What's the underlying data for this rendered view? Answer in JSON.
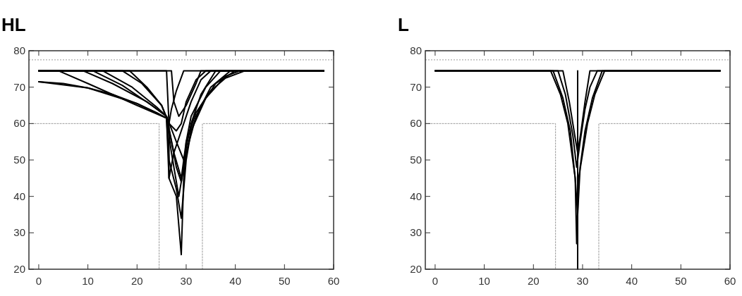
{
  "chart_data": [
    {
      "type": "line",
      "title": "HL",
      "xlim": [
        -2,
        60
      ],
      "xticks": [
        0,
        10,
        20,
        30,
        40,
        50,
        60
      ],
      "ylim": [
        20,
        80
      ],
      "yticks": [
        20,
        30,
        40,
        50,
        60,
        70,
        80
      ],
      "grid": false,
      "ref_lines": [
        {
          "axis": "y",
          "value": 77.5,
          "color": "#999999",
          "line_style": "dotted"
        }
      ],
      "series": [
        {
          "color": "#000000",
          "x": [
            0,
            5,
            10,
            15,
            20,
            24,
            26,
            26.5,
            28,
            29,
            29.5,
            30,
            32,
            35,
            38,
            42,
            58
          ],
          "values": [
            71.5,
            71,
            69.8,
            68,
            65.5,
            63,
            61.5,
            45,
            40,
            24,
            45,
            55,
            63,
            69,
            72.5,
            74.5,
            74.5
          ]
        },
        {
          "color": "#000000",
          "x": [
            0,
            10,
            20,
            26,
            26.5,
            28,
            29,
            30,
            31,
            33,
            36,
            40,
            58
          ],
          "values": [
            71.5,
            69.8,
            65.5,
            61.5,
            50,
            42,
            34,
            50,
            58,
            65,
            71,
            74.5,
            74.5
          ]
        },
        {
          "color": "#000000",
          "x": [
            0,
            4,
            10,
            20,
            26,
            27,
            28.5,
            29.5,
            31,
            34,
            38,
            41,
            58
          ],
          "values": [
            74.5,
            74.5,
            71,
            65,
            61.5,
            52,
            40,
            48,
            58,
            67,
            73,
            74.5,
            74.5
          ]
        },
        {
          "color": "#000000",
          "x": [
            0,
            9,
            15,
            22,
            26,
            27,
            28,
            29,
            30,
            32,
            35,
            39,
            58
          ],
          "values": [
            74.5,
            74.5,
            71,
            66,
            62,
            55,
            48,
            44,
            52,
            62,
            70,
            74.5,
            74.5
          ]
        },
        {
          "color": "#000000",
          "x": [
            0,
            11,
            17,
            23,
            26,
            27.5,
            29,
            30,
            31,
            34,
            37,
            58
          ],
          "values": [
            74.5,
            74.5,
            70.5,
            65,
            62,
            52,
            45,
            55,
            62,
            70,
            74.5,
            74.5
          ]
        },
        {
          "color": "#000000",
          "x": [
            0,
            13,
            19,
            24,
            26,
            28,
            29.5,
            31,
            33,
            36,
            58
          ],
          "values": [
            74.5,
            74.5,
            70,
            64.5,
            62,
            55,
            50,
            60,
            68,
            74.5,
            74.5
          ]
        },
        {
          "color": "#000000",
          "x": [
            0,
            17,
            21,
            25,
            26.5,
            28,
            29,
            30,
            32,
            34,
            58
          ],
          "values": [
            74.5,
            74.5,
            71,
            65,
            60,
            58,
            60,
            66,
            72,
            74.5,
            74.5
          ]
        },
        {
          "color": "#000000",
          "x": [
            0,
            18.5,
            22,
            25,
            26.5,
            27,
            28,
            29.5,
            58
          ],
          "values": [
            74.5,
            74.5,
            70,
            65,
            60,
            64,
            69,
            74.5,
            74.5
          ]
        },
        {
          "color": "#000000",
          "x": [
            0,
            26,
            26.5,
            26.5,
            27.5,
            29,
            31,
            33,
            35,
            58
          ],
          "values": [
            74.5,
            74.5,
            60,
            45,
            52,
            58,
            66,
            72,
            74.5,
            74.5
          ]
        },
        {
          "color": "#000000",
          "x": [
            0,
            27,
            27.5,
            28.5,
            30,
            32,
            33,
            58
          ],
          "values": [
            74.5,
            74.5,
            66,
            62,
            65,
            71,
            74.5,
            74.5
          ]
        },
        {
          "color": "#999999",
          "line_style": "dotted",
          "x": [
            -2,
            24.5,
            24.5
          ],
          "values": [
            60,
            60,
            20
          ]
        },
        {
          "color": "#999999",
          "line_style": "dotted",
          "x": [
            33.3,
            33.3,
            60
          ],
          "values": [
            20,
            60,
            60
          ]
        }
      ]
    },
    {
      "type": "line",
      "title": "L",
      "xlim": [
        -2,
        60
      ],
      "xticks": [
        0,
        10,
        20,
        30,
        40,
        50,
        60
      ],
      "ylim": [
        20,
        80
      ],
      "yticks": [
        20,
        30,
        40,
        50,
        60,
        70,
        80
      ],
      "grid": false,
      "ref_lines": [
        {
          "axis": "y",
          "value": 77.5,
          "color": "#999999",
          "line_style": "dotted"
        }
      ],
      "series": [
        {
          "color": "#000000",
          "x": [
            0,
            23.5,
            25.5,
            27,
            28.5,
            28.8,
            29.2,
            31,
            32.5,
            34.5,
            58
          ],
          "values": [
            74.5,
            74.5,
            68,
            60,
            45,
            27,
            45,
            60,
            68,
            74.5,
            74.5
          ]
        },
        {
          "color": "#000000",
          "x": [
            0,
            24,
            26,
            27.5,
            28.5,
            29,
            29.5,
            30.5,
            32,
            34,
            58
          ],
          "values": [
            74.5,
            74.5,
            67,
            58,
            45,
            35,
            48,
            58,
            67,
            74.5,
            74.5
          ]
        },
        {
          "color": "#000000",
          "x": [
            0,
            25,
            26.5,
            28,
            28.8,
            29.5,
            30.5,
            31.5,
            33,
            58
          ],
          "values": [
            74.5,
            74.5,
            68,
            57,
            48,
            55,
            64,
            70,
            74.5,
            74.5
          ]
        },
        {
          "color": "#000000",
          "x": [
            0,
            26,
            27.3,
            28.5,
            29,
            29.7,
            30.5,
            31.5,
            58
          ],
          "values": [
            74.5,
            74.5,
            66,
            56,
            52,
            58,
            66,
            74.5,
            74.5
          ]
        },
        {
          "color": "#000000",
          "x": [
            29,
            29
          ],
          "values": [
            74.5,
            20
          ]
        },
        {
          "color": "#999999",
          "line_style": "dotted",
          "x": [
            -2,
            24.5,
            24.5
          ],
          "values": [
            60,
            60,
            20
          ]
        },
        {
          "color": "#999999",
          "line_style": "dotted",
          "x": [
            33.3,
            33.3,
            60
          ],
          "values": [
            20,
            60,
            60
          ]
        }
      ]
    }
  ]
}
